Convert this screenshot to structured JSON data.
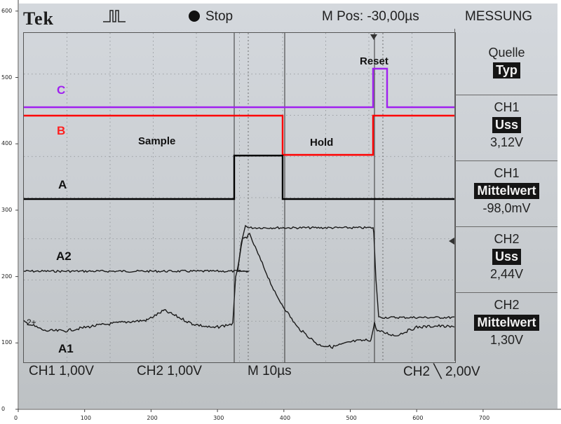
{
  "header": {
    "brand": "Tek",
    "run_state": "Stop",
    "horizontal_position": "M Pos: -30,00µs",
    "menu_title": "MESSUNG"
  },
  "side_panel": {
    "source_label": "Quelle",
    "source_value": "Typ",
    "measurements": [
      {
        "channel": "CH1",
        "type": "Uss",
        "value": "3,12V"
      },
      {
        "channel": "CH1",
        "type": "Mittelwert",
        "value": "-98,0mV"
      },
      {
        "channel": "CH2",
        "type": "Uss",
        "value": "2,44V"
      },
      {
        "channel": "CH2",
        "type": "Mittelwert",
        "value": "1,30V"
      }
    ]
  },
  "footer": {
    "ch1_scale": "CH1  1,00V",
    "ch2_scale": "CH2  1,00V",
    "timebase": "M  10µs",
    "trigger": "CH2 ╲ 2,00V"
  },
  "annotations": {
    "c": "C",
    "b": "B",
    "a": "A",
    "a2": "A2",
    "a1": "A1",
    "sample": "Sample",
    "hold": "Hold",
    "reset": "Reset",
    "ch_marker": "2+"
  },
  "ruler": {
    "y_ticks": [
      "0",
      "100",
      "200",
      "300",
      "400",
      "500",
      "600"
    ],
    "x_ticks": [
      "0",
      "100",
      "200",
      "300",
      "400",
      "500",
      "600",
      "700"
    ]
  },
  "colors": {
    "c_trace": "#a020f0",
    "b_trace": "#ff0000",
    "a_trace": "#000000",
    "label_c": "#a020f0",
    "label_b": "#ff2020"
  }
}
